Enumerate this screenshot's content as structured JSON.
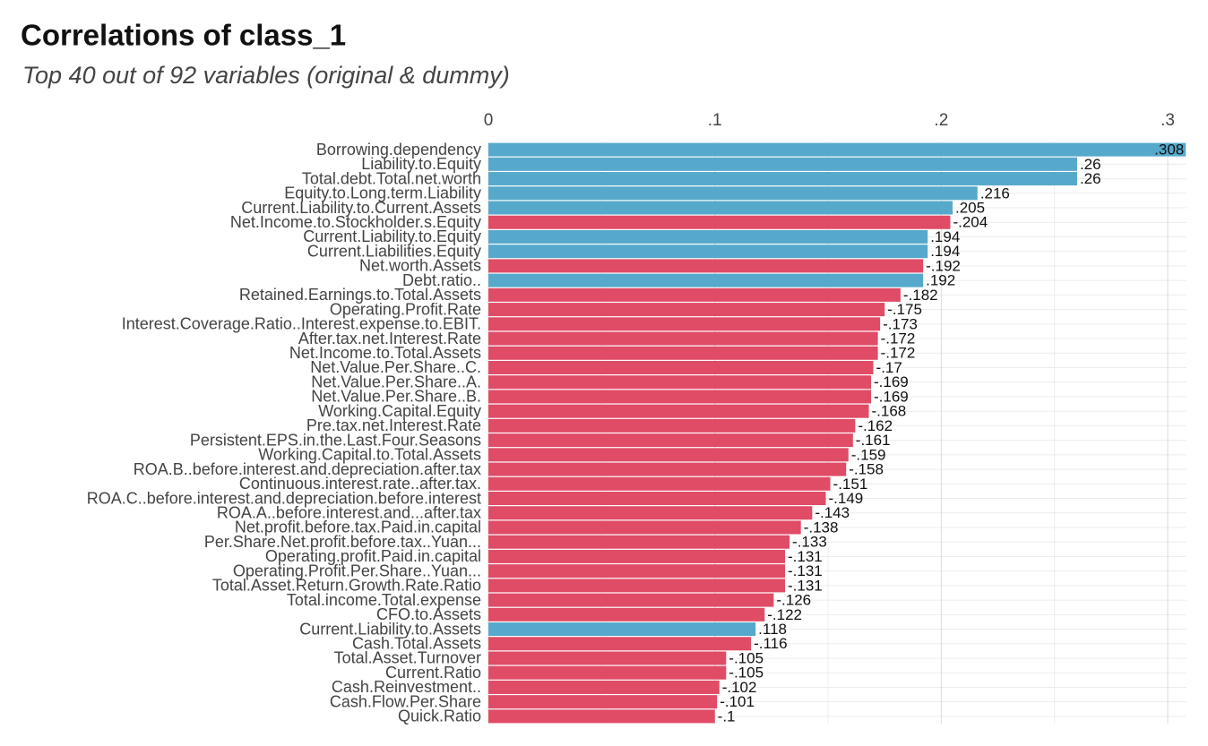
{
  "chart_data": {
    "type": "bar",
    "title": "Correlations of class_1",
    "subtitle": "Top 40 out of 92 variables (original & dummy)",
    "categories": [
      "Borrowing.dependency",
      "Liability.to.Equity",
      "Total.debt.Total.net.worth",
      "Equity.to.Long.term.Liability",
      "Current.Liability.to.Current.Assets",
      "Net.Income.to.Stockholder.s.Equity",
      "Current.Liability.to.Equity",
      "Current.Liabilities.Equity",
      "Net.worth.Assets",
      "Debt.ratio..",
      "Retained.Earnings.to.Total.Assets",
      "Operating.Profit.Rate",
      "Interest.Coverage.Ratio..Interest.expense.to.EBIT.",
      "After.tax.net.Interest.Rate",
      "Net.Income.to.Total.Assets",
      "Net.Value.Per.Share..C.",
      "Net.Value.Per.Share..A.",
      "Net.Value.Per.Share..B.",
      "Working.Capital.Equity",
      "Pre.tax.net.Interest.Rate",
      "Persistent.EPS.in.the.Last.Four.Seasons",
      "Working.Capital.to.Total.Assets",
      "ROA.B..before.interest.and.depreciation.after.tax",
      "Continuous.interest.rate..after.tax.",
      "ROA.C..before.interest.and.depreciation.before.interest",
      "ROA.A..before.interest.and...after.tax",
      "Net.profit.before.tax.Paid.in.capital",
      "Per.Share.Net.profit.before.tax..Yuan...",
      "Operating.profit.Paid.in.capital",
      "Operating.Profit.Per.Share..Yuan...",
      "Total.Asset.Return.Growth.Rate.Ratio",
      "Total.income.Total.expense",
      "CFO.to.Assets",
      "Current.Liability.to.Assets",
      "Cash.Total.Assets",
      "Total.Asset.Turnover",
      "Current.Ratio",
      "Cash.Reinvestment..",
      "Cash.Flow.Per.Share",
      "Quick.Ratio"
    ],
    "values": [
      0.308,
      0.26,
      0.26,
      0.216,
      0.205,
      -0.204,
      0.194,
      0.194,
      -0.192,
      0.192,
      -0.182,
      -0.175,
      -0.173,
      -0.172,
      -0.172,
      -0.17,
      -0.169,
      -0.169,
      -0.168,
      -0.162,
      -0.161,
      -0.159,
      -0.158,
      -0.151,
      -0.149,
      -0.143,
      -0.138,
      -0.133,
      -0.131,
      -0.131,
      -0.131,
      -0.126,
      -0.122,
      0.118,
      -0.116,
      -0.105,
      -0.105,
      -0.102,
      -0.101,
      -0.1
    ],
    "value_labels": [
      ".308",
      ".26",
      ".26",
      ".216",
      ".205",
      "-.204",
      ".194",
      ".194",
      "-.192",
      ".192",
      "-.182",
      "-.175",
      "-.173",
      "-.172",
      "-.172",
      "-.17",
      "-.169",
      "-.169",
      "-.168",
      "-.162",
      "-.161",
      "-.159",
      "-.158",
      "-.151",
      "-.149",
      "-.143",
      "-.138",
      "-.133",
      "-.131",
      "-.131",
      "-.131",
      "-.126",
      "-.122",
      ".118",
      "-.116",
      "-.105",
      "-.105",
      "-.102",
      "-.101",
      "-.1"
    ],
    "color_positive": "#56a9cb",
    "color_negative": "#e04b66",
    "xlim": [
      0,
      0.3083
    ],
    "xticks": [
      0,
      {
        "value": 0.1,
        "label": ".1"
      },
      {
        "value": 0.2,
        "label": ".2"
      },
      {
        "value": 0.3,
        "label": ".3"
      }
    ],
    "minor_xticks": [
      0.05,
      0.15,
      0.25
    ],
    "grid": true
  }
}
